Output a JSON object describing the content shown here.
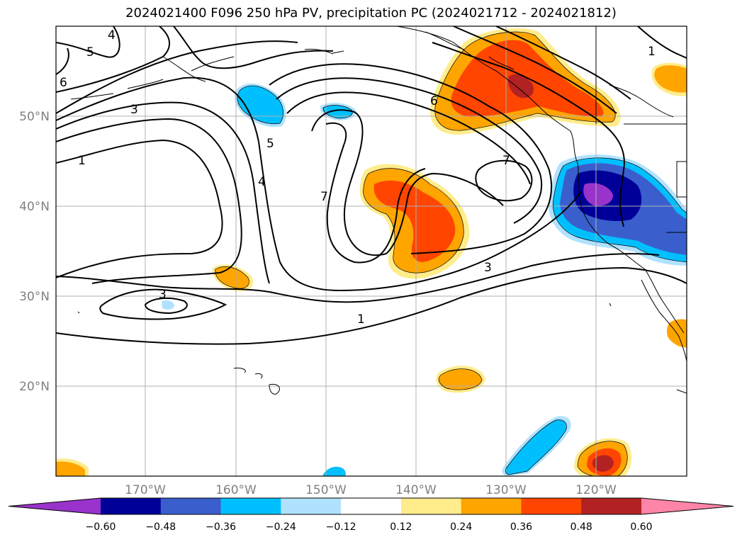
{
  "title": "2024021400 F096 250 hPa PV, precipitation PC (2024021712 - 2024021812)",
  "map": {
    "projection": "plate-carree",
    "lon_range": [
      -180,
      -110
    ],
    "lat_range": [
      10,
      60
    ],
    "gridlines": true,
    "lon_ticks": [
      -170,
      -160,
      -150,
      -140,
      -130,
      -120
    ],
    "lon_tick_labels": [
      "170°W",
      "160°W",
      "150°W",
      "140°W",
      "130°W",
      "120°W"
    ],
    "lat_ticks": [
      20,
      30,
      40,
      50
    ],
    "lat_tick_labels": [
      "20°N",
      "30°N",
      "40°N",
      "50°N"
    ],
    "coastlines": true,
    "contour_color": "#000000"
  },
  "pv_contour_labels": [
    {
      "text": "5"
    },
    {
      "text": "4"
    },
    {
      "text": "6"
    },
    {
      "text": "3"
    },
    {
      "text": "1"
    },
    {
      "text": "5"
    },
    {
      "text": "4"
    },
    {
      "text": "7"
    },
    {
      "text": "6"
    },
    {
      "text": "7"
    },
    {
      "text": "3"
    },
    {
      "text": "1"
    },
    {
      "text": "3"
    },
    {
      "text": "1"
    }
  ],
  "colorbar": {
    "colors": [
      "#9933cc",
      "#000099",
      "#3a5fcd",
      "#00bfff",
      "#b0e2ff",
      "#ffffff",
      "#ffec8b",
      "#ffa500",
      "#ff4500",
      "#b22222",
      "#ff85a8"
    ],
    "labels": [
      "−0.60",
      "−0.48",
      "−0.36",
      "−0.24",
      "−0.12",
      "0.12",
      "0.24",
      "0.36",
      "0.48",
      "0.60"
    ],
    "extend": "both"
  }
}
